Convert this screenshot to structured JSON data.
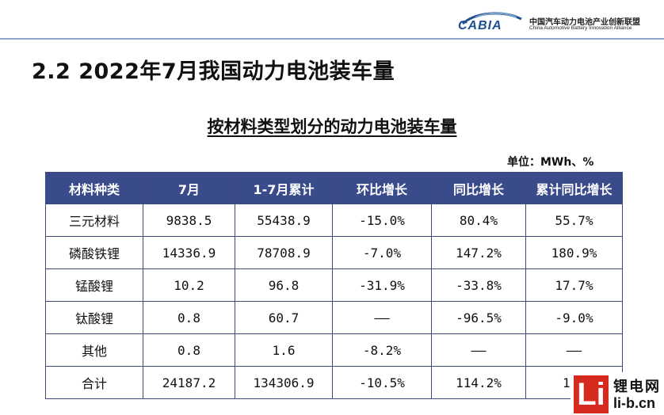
{
  "header": {
    "logo_text": "CABIA",
    "org_name_cn": "中国汽车动力电池产业创新联盟",
    "org_name_en": "China Automotive Battery Innovation Alliance",
    "brand_color": "#1d4f91"
  },
  "slide": {
    "title": "2.2 2022年7月我国动力电池装车量"
  },
  "table": {
    "title": "按材料类型划分的动力电池装车量",
    "unit": "单位：MWh、%",
    "header_color": "#394b8a",
    "columns": [
      "材料种类",
      "7月",
      "1-7月累计",
      "环比增长",
      "同比增长",
      "累计同比增长"
    ],
    "rows": [
      [
        "三元材料",
        "9838.5",
        "55438.9",
        "-15.0%",
        "80.4%",
        "55.7%"
      ],
      [
        "磷酸铁锂",
        "14336.9",
        "78708.9",
        "-7.0%",
        "147.2%",
        "180.9%"
      ],
      [
        "锰酸锂",
        "10.2",
        "96.8",
        "-31.9%",
        "-33.8%",
        "17.7%"
      ],
      [
        "钛酸锂",
        "0.8",
        "60.7",
        "——",
        "-96.5%",
        "-9.0%"
      ],
      [
        "其他",
        "0.8",
        "1.6",
        "-8.2%",
        "——",
        "——"
      ],
      [
        "合计",
        "24187.2",
        "134306.9",
        "-10.5%",
        "114.2%",
        "110"
      ]
    ]
  },
  "watermark": {
    "letter": "Li",
    "name_cn": "锂电网",
    "domain": "li-b.cn",
    "color": "#d62a1e"
  }
}
